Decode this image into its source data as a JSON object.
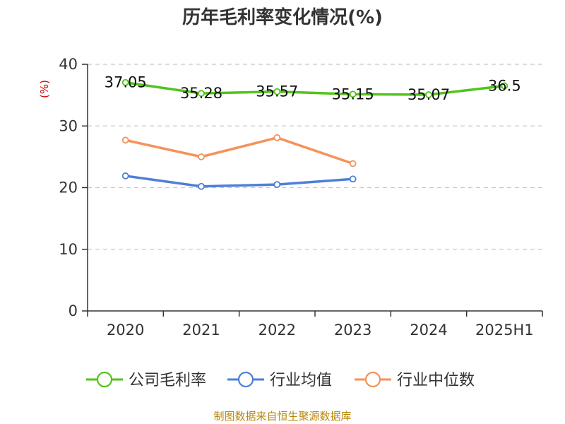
{
  "chart_data": {
    "type": "line",
    "title": "历年毛利率变化情况(%)",
    "ylabel": "(%)",
    "xlabel": "",
    "categories": [
      "2020",
      "2021",
      "2022",
      "2023",
      "2024",
      "2025H1"
    ],
    "ylim": [
      0,
      40
    ],
    "yticks": [
      0,
      10,
      20,
      30,
      40
    ],
    "grid": true,
    "legend_position": "bottom",
    "series": [
      {
        "name": "公司毛利率",
        "color": "#52c41a",
        "values": [
          37.05,
          35.28,
          35.57,
          35.15,
          35.07,
          36.5
        ],
        "labels": [
          "37.05",
          "35.28",
          "35.57",
          "35.15",
          "35.07",
          "36.5"
        ]
      },
      {
        "name": "行业均值",
        "color": "#4e7fd8",
        "values": [
          21.9,
          20.2,
          20.5,
          21.4,
          null,
          null
        ]
      },
      {
        "name": "行业中位数",
        "color": "#f5925a",
        "values": [
          27.7,
          25.0,
          28.1,
          23.9,
          null,
          null
        ]
      }
    ]
  },
  "source": "制图数据来自恒生聚源数据库"
}
